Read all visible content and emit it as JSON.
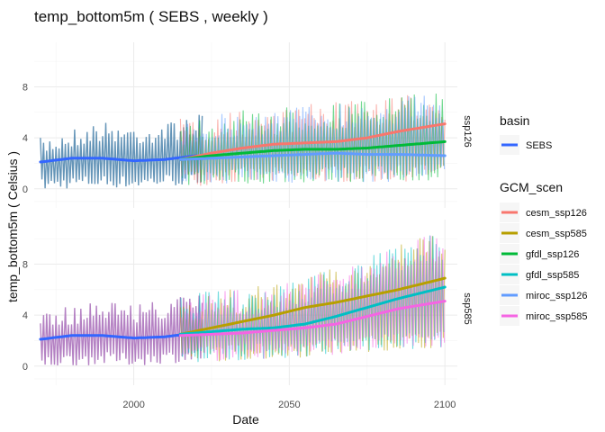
{
  "chart_data": {
    "type": "line",
    "title": "temp_bottom5m ( SEBS , weekly )",
    "xlabel": "Date",
    "ylabel": "temp_bottom5m ( Celsius )",
    "xlim": [
      1968,
      2104
    ],
    "ylim": [
      -1.5,
      11.5
    ],
    "x_ticks": [
      2000,
      2050,
      2100
    ],
    "y_ticks": [
      0,
      4,
      8
    ],
    "grid": true,
    "legend_placement": "right",
    "facets": [
      "ssp126",
      "ssp585"
    ],
    "legends": [
      {
        "title": "basin",
        "entries": [
          {
            "label": "SEBS",
            "color": "#3366FF"
          }
        ]
      },
      {
        "title": "GCM_scen",
        "entries": [
          {
            "label": "cesm_ssp126",
            "color": "#F8766D"
          },
          {
            "label": "cesm_ssp585",
            "color": "#B79F00"
          },
          {
            "label": "gfdl_ssp126",
            "color": "#00BA38"
          },
          {
            "label": "gfdl_ssp585",
            "color": "#00BFC4"
          },
          {
            "label": "miroc_ssp126",
            "color": "#619CFF"
          },
          {
            "label": "miroc_ssp585",
            "color": "#F564E3"
          }
        ]
      }
    ],
    "raw_band": {
      "ssp126": {
        "hindcast_color": "#5d8fb4",
        "series": [
          "cesm_ssp126",
          "gfdl_ssp126",
          "miroc_ssp126"
        ],
        "x": [
          1970,
          1980,
          1990,
          2000,
          2010,
          2020,
          2030,
          2040,
          2050,
          2060,
          2070,
          2080,
          2090,
          2100
        ],
        "low": [
          -0.2,
          0.0,
          0.1,
          0.0,
          0.2,
          0.2,
          0.4,
          0.4,
          0.4,
          0.5,
          0.5,
          0.5,
          0.6,
          0.7
        ],
        "high": [
          4.0,
          4.8,
          5.3,
          5.0,
          5.2,
          5.8,
          6.0,
          6.3,
          6.5,
          6.8,
          6.9,
          7.2,
          7.4,
          7.6
        ]
      },
      "ssp585": {
        "hindcast_color": "#b07ac0",
        "series": [
          "cesm_ssp585",
          "gfdl_ssp585",
          "miroc_ssp585"
        ],
        "x": [
          1970,
          1980,
          1990,
          2000,
          2010,
          2020,
          2030,
          2040,
          2050,
          2060,
          2070,
          2080,
          2090,
          2100
        ],
        "low": [
          -0.2,
          0.0,
          0.1,
          0.0,
          0.2,
          0.3,
          0.4,
          0.5,
          0.6,
          0.8,
          1.0,
          1.2,
          1.3,
          1.5
        ],
        "high": [
          4.0,
          4.8,
          5.3,
          5.0,
          5.2,
          5.8,
          6.0,
          6.3,
          6.6,
          7.5,
          8.0,
          9.0,
          10.0,
          10.5
        ]
      }
    },
    "smooth_series": [
      {
        "name": "SEBS",
        "facet": "ssp126",
        "x": [
          1970,
          1980,
          1990,
          2000,
          2010,
          2020
        ],
        "values": [
          2.1,
          2.4,
          2.4,
          2.2,
          2.3,
          2.6
        ]
      },
      {
        "name": "cesm_ssp126",
        "facet": "ssp126",
        "x": [
          2015,
          2025,
          2035,
          2045,
          2055,
          2065,
          2075,
          2085,
          2100
        ],
        "values": [
          2.3,
          2.8,
          3.2,
          3.5,
          3.6,
          3.7,
          4.0,
          4.5,
          5.1
        ]
      },
      {
        "name": "gfdl_ssp126",
        "facet": "ssp126",
        "x": [
          2015,
          2025,
          2035,
          2045,
          2055,
          2065,
          2075,
          2085,
          2100
        ],
        "values": [
          2.3,
          2.6,
          2.8,
          3.0,
          3.1,
          3.1,
          3.2,
          3.4,
          3.7
        ]
      },
      {
        "name": "miroc_ssp126",
        "facet": "ssp126",
        "x": [
          2015,
          2025,
          2035,
          2045,
          2055,
          2065,
          2075,
          2085,
          2100
        ],
        "values": [
          2.3,
          2.4,
          2.5,
          2.6,
          2.7,
          2.8,
          2.7,
          2.7,
          2.6
        ]
      },
      {
        "name": "SEBS",
        "facet": "ssp585",
        "x": [
          1970,
          1980,
          1990,
          2000,
          2010,
          2020
        ],
        "values": [
          2.1,
          2.4,
          2.4,
          2.2,
          2.3,
          2.6
        ]
      },
      {
        "name": "cesm_ssp585",
        "facet": "ssp585",
        "x": [
          2015,
          2025,
          2035,
          2045,
          2055,
          2065,
          2075,
          2085,
          2100
        ],
        "values": [
          2.5,
          3.0,
          3.5,
          4.0,
          4.6,
          5.0,
          5.5,
          6.0,
          6.9
        ]
      },
      {
        "name": "gfdl_ssp585",
        "facet": "ssp585",
        "x": [
          2015,
          2025,
          2035,
          2045,
          2055,
          2065,
          2075,
          2085,
          2100
        ],
        "values": [
          2.5,
          2.7,
          2.9,
          3.0,
          3.3,
          3.9,
          4.6,
          5.3,
          6.2
        ]
      },
      {
        "name": "miroc_ssp585",
        "facet": "ssp585",
        "x": [
          2015,
          2025,
          2035,
          2045,
          2055,
          2065,
          2075,
          2085,
          2100
        ],
        "values": [
          2.4,
          2.5,
          2.6,
          2.8,
          3.0,
          3.3,
          3.9,
          4.5,
          5.1
        ]
      }
    ]
  }
}
